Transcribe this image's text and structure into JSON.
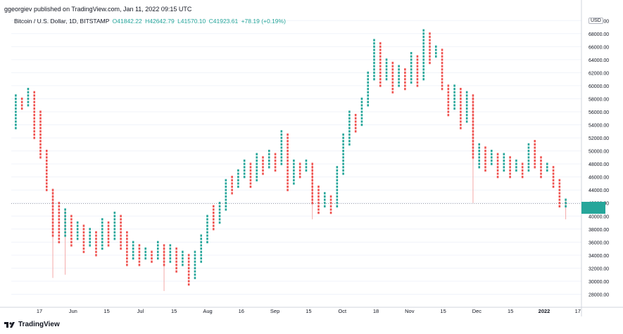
{
  "header": {
    "published": "ggeorgiev published on TradingView.com, Jan 11, 2022 09:15 UTC"
  },
  "legend": {
    "symbol": "Bitcoin / U.S. Dollar, 1D, BITSTAMP",
    "open_label": "O",
    "open": "41842.22",
    "high_label": "H",
    "high": "42642.79",
    "low_label": "L",
    "low": "41570.10",
    "close_label": "C",
    "close": "41923.61",
    "change": "+78.19 (+0.19%)"
  },
  "currency": "USD",
  "footer": {
    "brand": "TradingView"
  },
  "colors": {
    "up": "#26a69a",
    "down": "#ef5350",
    "grid": "#f0f3fa",
    "axis_text": "#131722"
  },
  "chart_data": {
    "type": "point_and_figure",
    "current_price": 41923.61,
    "ylim": [
      26000,
      71000
    ],
    "y_ticks": [
      "28000.00",
      "30000.00",
      "32000.00",
      "34000.00",
      "36000.00",
      "38000.00",
      "40000.00",
      "42000.00",
      "44000.00",
      "46000.00",
      "48000.00",
      "50000.00",
      "52000.00",
      "54000.00",
      "56000.00",
      "58000.00",
      "60000.00",
      "62000.00",
      "64000.00",
      "66000.00",
      "68000.00",
      "70000.00"
    ],
    "x_ticks": [
      "17",
      "Jun",
      "15",
      "Jul",
      "15",
      "Aug",
      "16",
      "Sep",
      "15",
      "Oct",
      "18",
      "Nov",
      "15",
      "Dec",
      "15",
      "2022",
      "17"
    ],
    "bold_x_ticks": [
      "2022"
    ],
    "columns": [
      {
        "d": "up",
        "lo": 53500,
        "hi": 58500
      },
      {
        "d": "down",
        "lo": 56500,
        "hi": 58000
      },
      {
        "d": "up",
        "lo": 57000,
        "hi": 59500
      },
      {
        "d": "down",
        "lo": 52000,
        "hi": 59000
      },
      {
        "d": "down",
        "lo": 49000,
        "hi": 56000
      },
      {
        "d": "down",
        "lo": 44000,
        "hi": 50000
      },
      {
        "d": "down",
        "lo": 37000,
        "hi": 44000
      },
      {
        "d": "down",
        "lo": 36000,
        "hi": 42000
      },
      {
        "d": "up",
        "lo": 37000,
        "hi": 41000
      },
      {
        "d": "down",
        "lo": 35500,
        "hi": 40000
      },
      {
        "d": "up",
        "lo": 36500,
        "hi": 39000
      },
      {
        "d": "down",
        "lo": 34500,
        "hi": 38500
      },
      {
        "d": "up",
        "lo": 35500,
        "hi": 38000
      },
      {
        "d": "down",
        "lo": 34000,
        "hi": 37500
      },
      {
        "d": "up",
        "lo": 35000,
        "hi": 39500
      },
      {
        "d": "down",
        "lo": 35500,
        "hi": 39000
      },
      {
        "d": "up",
        "lo": 36500,
        "hi": 40500
      },
      {
        "d": "down",
        "lo": 35000,
        "hi": 40000
      },
      {
        "d": "down",
        "lo": 32500,
        "hi": 37500
      },
      {
        "d": "up",
        "lo": 33500,
        "hi": 36000
      },
      {
        "d": "down",
        "lo": 32500,
        "hi": 35500
      },
      {
        "d": "up",
        "lo": 33500,
        "hi": 35000
      },
      {
        "d": "down",
        "lo": 33000,
        "hi": 34500
      },
      {
        "d": "up",
        "lo": 33500,
        "hi": 36000
      },
      {
        "d": "down",
        "lo": 32500,
        "hi": 35500
      },
      {
        "d": "up",
        "lo": 33000,
        "hi": 35500
      },
      {
        "d": "down",
        "lo": 31500,
        "hi": 35000
      },
      {
        "d": "up",
        "lo": 32500,
        "hi": 34500
      },
      {
        "d": "down",
        "lo": 29500,
        "hi": 34000
      },
      {
        "d": "up",
        "lo": 30500,
        "hi": 34500
      },
      {
        "d": "up",
        "lo": 33000,
        "hi": 37000
      },
      {
        "d": "up",
        "lo": 36000,
        "hi": 40000
      },
      {
        "d": "down",
        "lo": 38000,
        "hi": 41500
      },
      {
        "d": "up",
        "lo": 39000,
        "hi": 42000
      },
      {
        "d": "up",
        "lo": 41000,
        "hi": 45500
      },
      {
        "d": "down",
        "lo": 43500,
        "hi": 46000
      },
      {
        "d": "up",
        "lo": 44500,
        "hi": 47000
      },
      {
        "d": "up",
        "lo": 46000,
        "hi": 48500
      },
      {
        "d": "down",
        "lo": 44500,
        "hi": 48000
      },
      {
        "d": "up",
        "lo": 45500,
        "hi": 49500
      },
      {
        "d": "down",
        "lo": 46500,
        "hi": 49000
      },
      {
        "d": "up",
        "lo": 47500,
        "hi": 50000
      },
      {
        "d": "down",
        "lo": 47000,
        "hi": 49500
      },
      {
        "d": "up",
        "lo": 48000,
        "hi": 53000
      },
      {
        "d": "down",
        "lo": 44000,
        "hi": 52500
      },
      {
        "d": "up",
        "lo": 45000,
        "hi": 48500
      },
      {
        "d": "down",
        "lo": 46000,
        "hi": 48000
      },
      {
        "d": "up",
        "lo": 47000,
        "hi": 48500
      },
      {
        "d": "down",
        "lo": 42000,
        "hi": 48000
      },
      {
        "d": "down",
        "lo": 40500,
        "hi": 44500
      },
      {
        "d": "up",
        "lo": 41500,
        "hi": 43500
      },
      {
        "d": "down",
        "lo": 40500,
        "hi": 43000
      },
      {
        "d": "up",
        "lo": 41500,
        "hi": 47500
      },
      {
        "d": "up",
        "lo": 46500,
        "hi": 52500
      },
      {
        "d": "up",
        "lo": 51000,
        "hi": 56000
      },
      {
        "d": "down",
        "lo": 53000,
        "hi": 55500
      },
      {
        "d": "up",
        "lo": 54000,
        "hi": 58000
      },
      {
        "d": "up",
        "lo": 57000,
        "hi": 62000
      },
      {
        "d": "up",
        "lo": 61000,
        "hi": 67000
      },
      {
        "d": "down",
        "lo": 60000,
        "hi": 66500
      },
      {
        "d": "up",
        "lo": 61000,
        "hi": 64000
      },
      {
        "d": "down",
        "lo": 59000,
        "hi": 63500
      },
      {
        "d": "up",
        "lo": 60000,
        "hi": 63000
      },
      {
        "d": "down",
        "lo": 59500,
        "hi": 62500
      },
      {
        "d": "up",
        "lo": 60500,
        "hi": 65000
      },
      {
        "d": "down",
        "lo": 60000,
        "hi": 64500
      },
      {
        "d": "up",
        "lo": 61000,
        "hi": 68500
      },
      {
        "d": "down",
        "lo": 63500,
        "hi": 68000
      },
      {
        "d": "up",
        "lo": 64500,
        "hi": 66000
      },
      {
        "d": "down",
        "lo": 59500,
        "hi": 65500
      },
      {
        "d": "down",
        "lo": 55500,
        "hi": 60000
      },
      {
        "d": "up",
        "lo": 56500,
        "hi": 60000
      },
      {
        "d": "down",
        "lo": 53500,
        "hi": 59500
      },
      {
        "d": "up",
        "lo": 54500,
        "hi": 59000
      },
      {
        "d": "down",
        "lo": 49000,
        "hi": 58500
      },
      {
        "d": "up",
        "lo": 47500,
        "hi": 51000
      },
      {
        "d": "down",
        "lo": 47000,
        "hi": 50500
      },
      {
        "d": "up",
        "lo": 48000,
        "hi": 50000
      },
      {
        "d": "down",
        "lo": 46000,
        "hi": 49500
      },
      {
        "d": "up",
        "lo": 47000,
        "hi": 49500
      },
      {
        "d": "down",
        "lo": 46000,
        "hi": 49000
      },
      {
        "d": "up",
        "lo": 47000,
        "hi": 48500
      },
      {
        "d": "down",
        "lo": 46000,
        "hi": 48000
      },
      {
        "d": "up",
        "lo": 47000,
        "hi": 51000
      },
      {
        "d": "down",
        "lo": 47500,
        "hi": 51500
      },
      {
        "d": "down",
        "lo": 46000,
        "hi": 49000
      },
      {
        "d": "up",
        "lo": 47000,
        "hi": 48000
      },
      {
        "d": "down",
        "lo": 44500,
        "hi": 47500
      },
      {
        "d": "down",
        "lo": 41500,
        "hi": 45500
      },
      {
        "d": "up",
        "lo": 41500,
        "hi": 42500
      }
    ],
    "tails": [
      {
        "c": 6,
        "lo": 30500,
        "hi": 44000
      },
      {
        "c": 8,
        "lo": 31000,
        "hi": 41000
      },
      {
        "c": 24,
        "lo": 28500,
        "hi": 35500
      },
      {
        "c": 48,
        "lo": 39500,
        "hi": 48000
      },
      {
        "c": 74,
        "lo": 42000,
        "hi": 58500
      },
      {
        "c": 89,
        "lo": 39500,
        "hi": 42500
      }
    ]
  }
}
